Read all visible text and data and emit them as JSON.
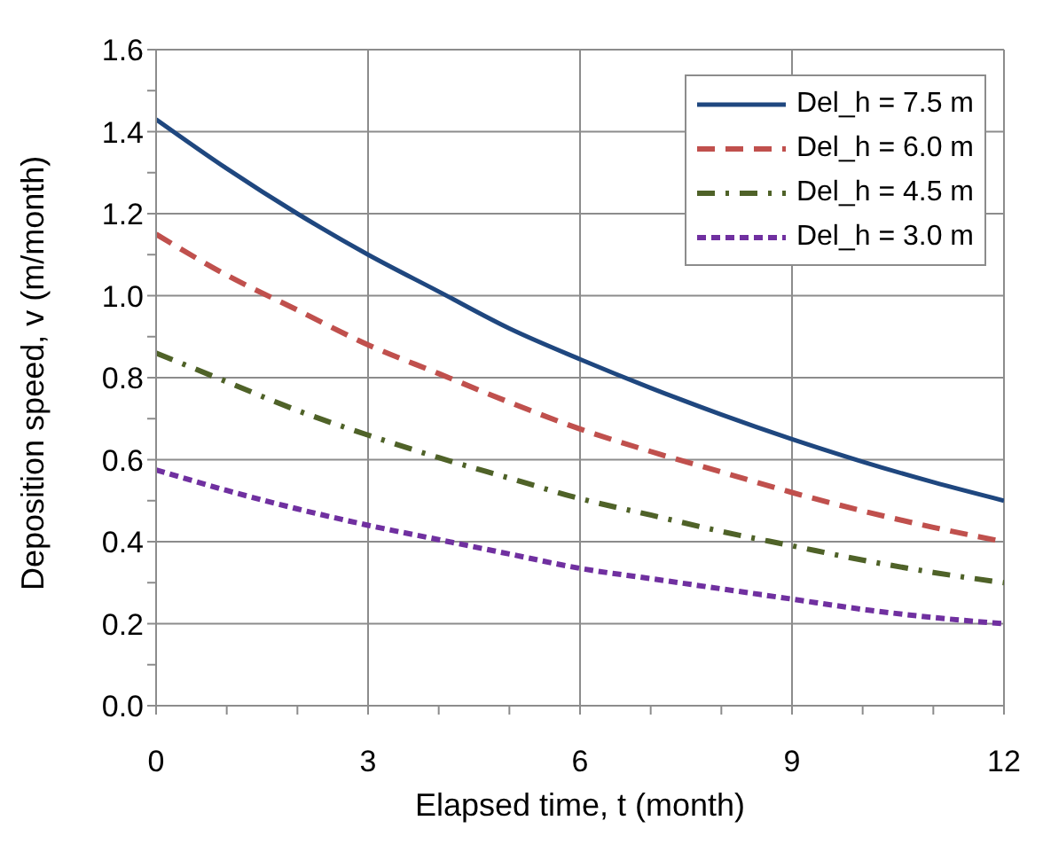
{
  "chart_data": {
    "type": "line",
    "xlabel": "Elapsed time, t (month)",
    "ylabel": "Deposition speed, v (m/month)",
    "x": [
      0,
      1,
      2,
      3,
      4,
      5,
      6,
      7,
      8,
      9,
      10,
      11,
      12
    ],
    "series": [
      {
        "name": "Del_h = 7.5 m",
        "color": "#1f477f",
        "line_style": "solid",
        "values": [
          1.43,
          1.31,
          1.2,
          1.1,
          1.01,
          0.92,
          0.845,
          0.775,
          0.71,
          0.65,
          0.595,
          0.545,
          0.5
        ]
      },
      {
        "name": "Del_h = 6.0 m",
        "color": "#c0504d",
        "line_style": "dashed",
        "values": [
          1.15,
          1.05,
          0.965,
          0.88,
          0.81,
          0.74,
          0.675,
          0.62,
          0.57,
          0.52,
          0.475,
          0.435,
          0.4
        ]
      },
      {
        "name": "Del_h = 4.5 m",
        "color": "#4f6228",
        "line_style": "dashdot",
        "values": [
          0.86,
          0.79,
          0.72,
          0.66,
          0.605,
          0.555,
          0.505,
          0.465,
          0.425,
          0.39,
          0.355,
          0.325,
          0.3
        ]
      },
      {
        "name": "Del_h = 3.0 m",
        "color": "#7030a0",
        "line_style": "dotted",
        "values": [
          0.575,
          0.525,
          0.48,
          0.44,
          0.405,
          0.37,
          0.335,
          0.31,
          0.285,
          0.26,
          0.235,
          0.215,
          0.2
        ]
      }
    ],
    "xlim": [
      0,
      12
    ],
    "xticks": [
      0,
      {
        "value": 1,
        "label": null
      },
      {
        "value": 2,
        "label": null
      },
      3,
      {
        "value": 4,
        "label": null
      },
      {
        "value": 5,
        "label": null
      },
      6,
      {
        "value": 7,
        "label": null
      },
      {
        "value": 8,
        "label": null
      },
      9,
      {
        "value": 10,
        "label": null
      },
      {
        "value": 11,
        "label": null
      },
      12
    ],
    "ylim": [
      0,
      1.6
    ],
    "yticks": [
      "0.0",
      {
        "value": 0.1,
        "label": null
      },
      {
        "value": 0.2,
        "label": "0.2"
      },
      {
        "value": 0.3,
        "label": null
      },
      {
        "value": 0.4,
        "label": "0.4"
      },
      {
        "value": 0.5,
        "label": null
      },
      {
        "value": 0.6,
        "label": "0.6"
      },
      {
        "value": 0.7,
        "label": null
      },
      {
        "value": 0.8,
        "label": "0.8"
      },
      {
        "value": 0.9,
        "label": null
      },
      {
        "value": 1.0,
        "label": "1.0"
      },
      {
        "value": 1.1,
        "label": null
      },
      {
        "value": 1.2,
        "label": "1.2"
      },
      {
        "value": 1.3,
        "label": null
      },
      {
        "value": 1.4,
        "label": "1.4"
      },
      {
        "value": 1.5,
        "label": null
      },
      {
        "value": 1.6,
        "label": "1.6"
      }
    ],
    "grid": true,
    "legend": "top right",
    "marker": "none"
  }
}
